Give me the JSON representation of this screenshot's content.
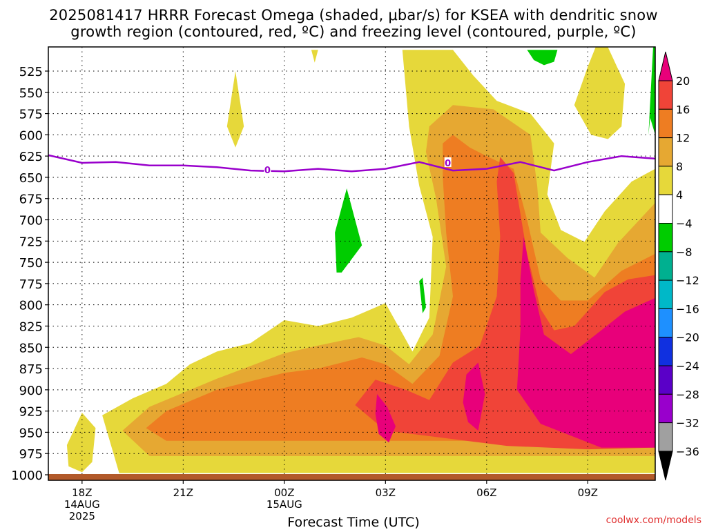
{
  "title": {
    "line1": "2025081417 HRRR Forecast Omega (shaded, μbar/s) for KSEA with dendritic snow",
    "line2": "growth region (contoured, red, ºC) and freezing level (contoured, purple, ºC)"
  },
  "xaxis_title": "Forecast Time (UTC)",
  "credit": "coolwx.com/models",
  "chart_data": {
    "type": "heatmap",
    "title": "2025081417 HRRR Forecast Omega (shaded, μbar/s) for KSEA with dendritic snow growth region (contoured, red, ºC) and freezing level (contoured, purple, ºC)",
    "xlabel": "Forecast Time (UTC)",
    "ylabel": "",
    "y_axis": {
      "units": "hPa",
      "inverted": true,
      "range": [
        500,
        1000
      ],
      "ticks": [
        525,
        550,
        575,
        600,
        625,
        650,
        675,
        700,
        725,
        750,
        775,
        800,
        825,
        850,
        875,
        900,
        925,
        950,
        975,
        1000
      ]
    },
    "x_axis": {
      "range_hours_from_start": [
        0,
        18
      ],
      "ticks": [
        {
          "hour": 1,
          "label": "18Z",
          "sub1": "14AUG",
          "sub2": "2025"
        },
        {
          "hour": 4,
          "label": "21Z",
          "sub1": "",
          "sub2": ""
        },
        {
          "hour": 7,
          "label": "00Z",
          "sub1": "15AUG",
          "sub2": ""
        },
        {
          "hour": 10,
          "label": "03Z",
          "sub1": "",
          "sub2": ""
        },
        {
          "hour": 13,
          "label": "06Z",
          "sub1": "",
          "sub2": ""
        },
        {
          "hour": 16,
          "label": "09Z",
          "sub1": "",
          "sub2": ""
        }
      ]
    },
    "grid": true,
    "colorbar": {
      "levels": [
        -36,
        -32,
        -28,
        -24,
        -20,
        -16,
        -12,
        -8,
        -4,
        4,
        8,
        12,
        16,
        20
      ],
      "colors": [
        "#000000",
        "#a0a0a0",
        "#9900cc",
        "#5a00c8",
        "#1030e0",
        "#1e90ff",
        "#00b8c8",
        "#00b090",
        "#00cc00",
        "#ffffff",
        "#e6d83a",
        "#e6a832",
        "#ee7d22",
        "#f04438",
        "#e8007a"
      ],
      "labels": [
        "20",
        "16",
        "12",
        "8",
        "4",
        "−4",
        "−8",
        "−12",
        "−16",
        "−20",
        "−24",
        "−28",
        "−32",
        "−36"
      ]
    },
    "freezing_level": {
      "label": "0",
      "color": "#9900cc",
      "points": [
        [
          0,
          624
        ],
        [
          1,
          633
        ],
        [
          2,
          632
        ],
        [
          3,
          636
        ],
        [
          4,
          636
        ],
        [
          5,
          638
        ],
        [
          6,
          642
        ],
        [
          7,
          643
        ],
        [
          8,
          640
        ],
        [
          9,
          643
        ],
        [
          10,
          640
        ],
        [
          11,
          632
        ],
        [
          12,
          642
        ],
        [
          13,
          640
        ],
        [
          14,
          632
        ],
        [
          15,
          642
        ],
        [
          16,
          632
        ],
        [
          17,
          625
        ],
        [
          18,
          628
        ]
      ]
    },
    "omega_regions": [
      {
        "level": "4 to 8",
        "polygons": [
          [
            [
              10.5,
              500
            ],
            [
              12,
              500
            ],
            [
              12.6,
              530
            ],
            [
              13.3,
              560
            ],
            [
              14.3,
              575
            ],
            [
              15,
              610
            ],
            [
              14.8,
              670
            ],
            [
              15.2,
              712
            ],
            [
              15.9,
              726
            ],
            [
              16.5,
              690
            ],
            [
              17.3,
              655
            ],
            [
              18,
              640
            ],
            [
              18,
              998
            ],
            [
              2.1,
              998
            ],
            [
              1.6,
              930
            ],
            [
              2.5,
              910
            ],
            [
              3.5,
              893
            ],
            [
              4.2,
              870
            ],
            [
              5,
              855
            ],
            [
              6,
              845
            ],
            [
              7,
              818
            ],
            [
              8,
              825
            ],
            [
              9,
              815
            ],
            [
              10,
              798
            ],
            [
              10.8,
              855
            ],
            [
              11.3,
              815
            ],
            [
              11.4,
              720
            ],
            [
              11,
              660
            ],
            [
              10.7,
              590
            ]
          ],
          [
            [
              0.55,
              965
            ],
            [
              1,
              927
            ],
            [
              1.4,
              945
            ],
            [
              1.3,
              985
            ],
            [
              1,
              997
            ],
            [
              0.6,
              990
            ]
          ],
          [
            [
              5.3,
              590
            ],
            [
              5.55,
              525
            ],
            [
              5.8,
              590
            ],
            [
              5.55,
              615
            ]
          ],
          [
            [
              16,
              520
            ],
            [
              16.4,
              480
            ],
            [
              17.1,
              540
            ],
            [
              17,
              590
            ],
            [
              16.6,
              605
            ],
            [
              16.1,
              600
            ],
            [
              15.6,
              565
            ]
          ],
          [
            [
              7.8,
              500
            ],
            [
              8.0,
              500
            ],
            [
              7.9,
              515
            ]
          ]
        ]
      },
      {
        "level": "8 to 12",
        "polygons": [
          [
            [
              11.3,
              590
            ],
            [
              12,
              565
            ],
            [
              13.2,
              570
            ],
            [
              14.3,
              600
            ],
            [
              14.5,
              660
            ],
            [
              14.6,
              715
            ],
            [
              15.4,
              745
            ],
            [
              16.2,
              768
            ],
            [
              16.9,
              727
            ],
            [
              18,
              680
            ],
            [
              18,
              978
            ],
            [
              3,
              978
            ],
            [
              2.2,
              948
            ],
            [
              3,
              920
            ],
            [
              5,
              887
            ],
            [
              7,
              857
            ],
            [
              8,
              848
            ],
            [
              9.2,
              838
            ],
            [
              10,
              848
            ],
            [
              10.7,
              870
            ],
            [
              11.4,
              835
            ],
            [
              11.8,
              755
            ],
            [
              11.5,
              675
            ],
            [
              11.2,
              620
            ]
          ]
        ]
      },
      {
        "level": "12 to 16",
        "polygons": [
          [
            [
              11.7,
              610
            ],
            [
              12,
              600
            ],
            [
              12.5,
              615
            ],
            [
              13.0,
              625
            ],
            [
              13.8,
              640
            ],
            [
              14.2,
              700
            ],
            [
              14.6,
              770
            ],
            [
              15.2,
              795
            ],
            [
              16,
              795
            ],
            [
              17,
              760
            ],
            [
              18,
              740
            ],
            [
              18,
              960
            ],
            [
              3.5,
              960
            ],
            [
              2.9,
              945
            ],
            [
              3.5,
              925
            ],
            [
              5,
              900
            ],
            [
              7,
              880
            ],
            [
              8,
              875
            ],
            [
              9.3,
              862
            ],
            [
              10,
              870
            ],
            [
              10.8,
              893
            ],
            [
              11.6,
              860
            ],
            [
              12,
              790
            ],
            [
              11.8,
              715
            ],
            [
              11.7,
              650
            ]
          ]
        ]
      },
      {
        "level": "16 to 20",
        "polygons": [
          [
            [
              13.4,
              626
            ],
            [
              13.8,
              645
            ],
            [
              14.2,
              740
            ],
            [
              14.6,
              805
            ],
            [
              15,
              830
            ],
            [
              15.6,
              825
            ],
            [
              16.5,
              785
            ],
            [
              17.2,
              770
            ],
            [
              18,
              765
            ],
            [
              18,
              968
            ],
            [
              16,
              970
            ],
            [
              13.6,
              966
            ],
            [
              10,
              948
            ],
            [
              9.1,
              918
            ],
            [
              9.7,
              888
            ],
            [
              10.6,
              900
            ],
            [
              11.3,
              912
            ],
            [
              12,
              868
            ],
            [
              12.8,
              848
            ],
            [
              13.3,
              790
            ],
            [
              13.4,
              720
            ],
            [
              13.3,
              655
            ]
          ]
        ]
      },
      {
        "level": "20+",
        "polygons": [
          [
            [
              14.1,
              720
            ],
            [
              14.4,
              783
            ],
            [
              14.7,
              835
            ],
            [
              15.5,
              858
            ],
            [
              16.4,
              830
            ],
            [
              17.1,
              808
            ],
            [
              18,
              792
            ],
            [
              18,
              968
            ],
            [
              16.4,
              968
            ],
            [
              14.6,
              940
            ],
            [
              13.9,
              900
            ],
            [
              14.0,
              830
            ],
            [
              14.0,
              770
            ]
          ],
          [
            [
              12.4,
              882
            ],
            [
              12.75,
              868
            ],
            [
              12.95,
              905
            ],
            [
              12.75,
              948
            ],
            [
              12.45,
              938
            ],
            [
              12.3,
              915
            ]
          ],
          [
            [
              9.75,
              905
            ],
            [
              10.05,
              920
            ],
            [
              10.3,
              943
            ],
            [
              10.1,
              962
            ],
            [
              9.8,
              952
            ],
            [
              9.7,
              928
            ]
          ]
        ]
      },
      {
        "level": "-8 to -4",
        "polygons": [
          [
            [
              14.2,
              500
            ],
            [
              15.1,
              500
            ],
            [
              15,
              514
            ],
            [
              14.7,
              518
            ],
            [
              14.4,
              512
            ]
          ],
          [
            [
              17.8,
              600
            ],
            [
              18,
              450
            ],
            [
              18,
              600
            ],
            [
              17.85,
              580
            ]
          ],
          [
            [
              8.5,
              715
            ],
            [
              8.85,
              663
            ],
            [
              9.3,
              730
            ],
            [
              8.7,
              762
            ],
            [
              8.55,
              762
            ]
          ],
          [
            [
              11.0,
              772
            ],
            [
              11.1,
              768
            ],
            [
              11.2,
              803
            ],
            [
              11.1,
              810
            ]
          ]
        ]
      }
    ]
  }
}
